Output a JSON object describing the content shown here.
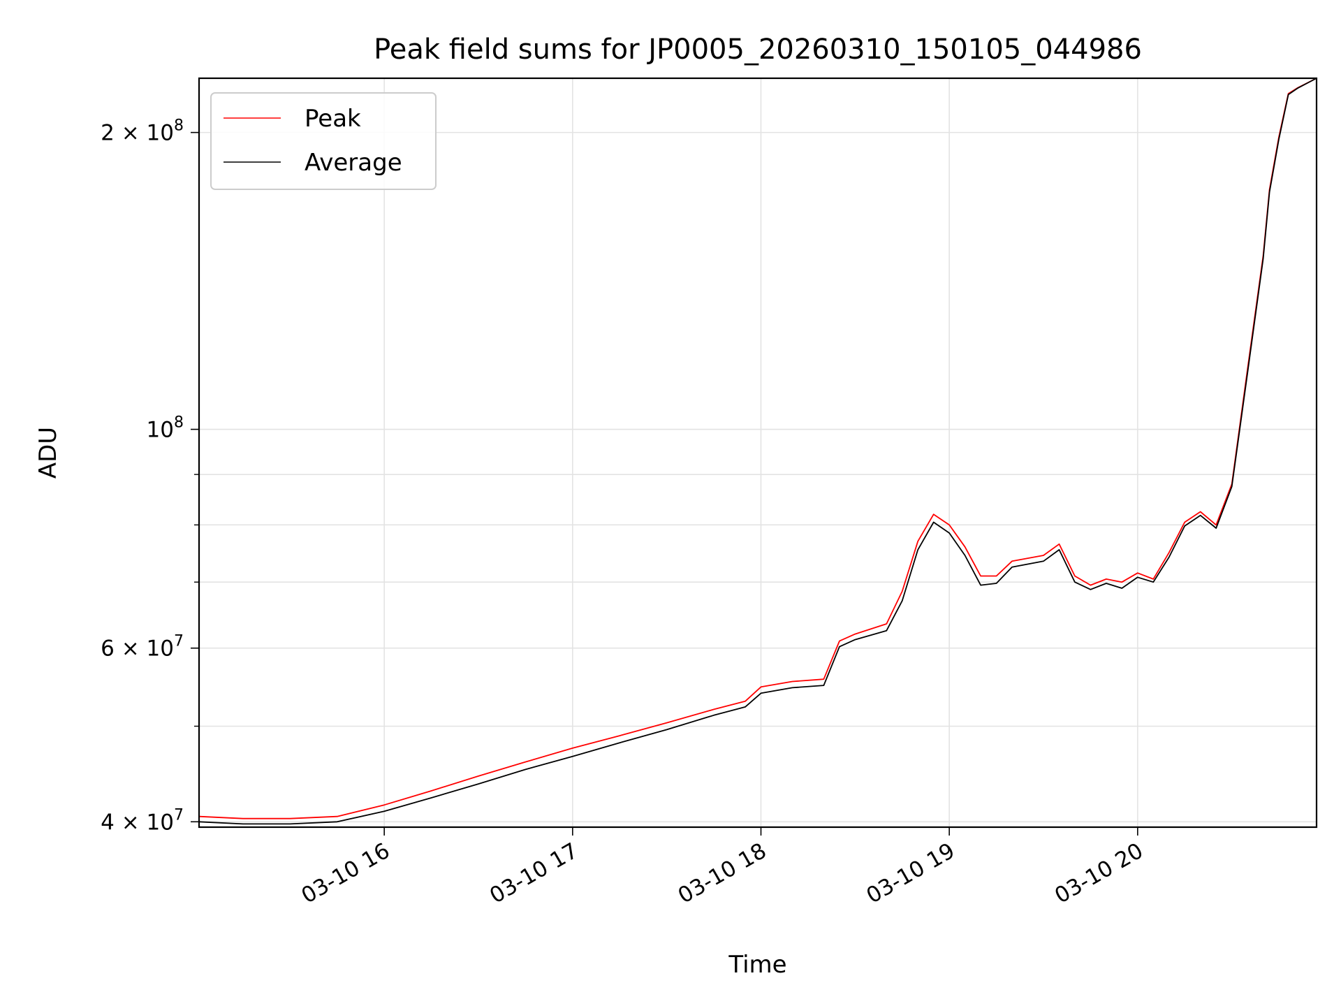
{
  "chart_data": {
    "type": "line",
    "title": "Peak field sums for JP0005_20260310_150105_044986",
    "xlabel": "Time",
    "ylabel": "ADU",
    "yscale": "log",
    "ylim": [
      39500000,
      227000000
    ],
    "xlim": [
      "2026-03-10 15:01",
      "2026-03-10 20:57"
    ],
    "grid": true,
    "legend_position": "top-left",
    "x_ticks": [
      {
        "value": "2026-03-10 16:00",
        "label": "03-10 16"
      },
      {
        "value": "2026-03-10 17:00",
        "label": "03-10 17"
      },
      {
        "value": "2026-03-10 18:00",
        "label": "03-10 18"
      },
      {
        "value": "2026-03-10 19:00",
        "label": "03-10 19"
      },
      {
        "value": "2026-03-10 20:00",
        "label": "03-10 20"
      }
    ],
    "y_ticks": [
      {
        "value": 40000000,
        "mantissa": "4",
        "exponent": "7"
      },
      {
        "value": 60000000,
        "mantissa": "6",
        "exponent": "7"
      },
      {
        "value": 100000000,
        "mantissa": "",
        "exponent": "8"
      },
      {
        "value": 200000000,
        "mantissa": "2",
        "exponent": "8"
      }
    ],
    "y_minor_ticks": [
      50000000,
      70000000,
      80000000,
      90000000
    ],
    "x": [
      "15:01",
      "15:15",
      "15:30",
      "15:45",
      "16:00",
      "16:15",
      "16:30",
      "16:45",
      "17:00",
      "17:15",
      "17:30",
      "17:45",
      "17:55",
      "18:00",
      "18:10",
      "18:20",
      "18:25",
      "18:30",
      "18:40",
      "18:45",
      "18:50",
      "18:55",
      "19:00",
      "19:05",
      "19:10",
      "19:15",
      "19:20",
      "19:30",
      "19:35",
      "19:40",
      "19:45",
      "19:50",
      "19:55",
      "20:00",
      "20:05",
      "20:10",
      "20:15",
      "20:20",
      "20:25",
      "20:30",
      "20:35",
      "20:40",
      "20:42",
      "20:45",
      "20:48",
      "20:51",
      "20:57"
    ],
    "series": [
      {
        "name": "Peak",
        "color": "#ff0000",
        "values": [
          40500000,
          40300000,
          40300000,
          40500000,
          41600000,
          43000000,
          44500000,
          46000000,
          47500000,
          48900000,
          50400000,
          52000000,
          53000000,
          54800000,
          55500000,
          55800000,
          61000000,
          62000000,
          63500000,
          68500000,
          77000000,
          82000000,
          80000000,
          76000000,
          71000000,
          71000000,
          73500000,
          74500000,
          76500000,
          71000000,
          69500000,
          70500000,
          70000000,
          71500000,
          70500000,
          75000000,
          80500000,
          82500000,
          80000000,
          88000000,
          115000000,
          150000000,
          175000000,
          198000000,
          219000000,
          222000000,
          227000000
        ]
      },
      {
        "name": "Average",
        "color": "#000000",
        "values": [
          40000000,
          39800000,
          39800000,
          40000000,
          41000000,
          42300000,
          43700000,
          45200000,
          46600000,
          48100000,
          49600000,
          51300000,
          52300000,
          54000000,
          54700000,
          55000000,
          60200000,
          61200000,
          62500000,
          67000000,
          75500000,
          80500000,
          78500000,
          74500000,
          69500000,
          69800000,
          72500000,
          73500000,
          75500000,
          70000000,
          68800000,
          69800000,
          69000000,
          70800000,
          70000000,
          74200000,
          79800000,
          81800000,
          79400000,
          87500000,
          114000000,
          149000000,
          174000000,
          197000000,
          218500000,
          221800000,
          227000000
        ]
      }
    ]
  }
}
